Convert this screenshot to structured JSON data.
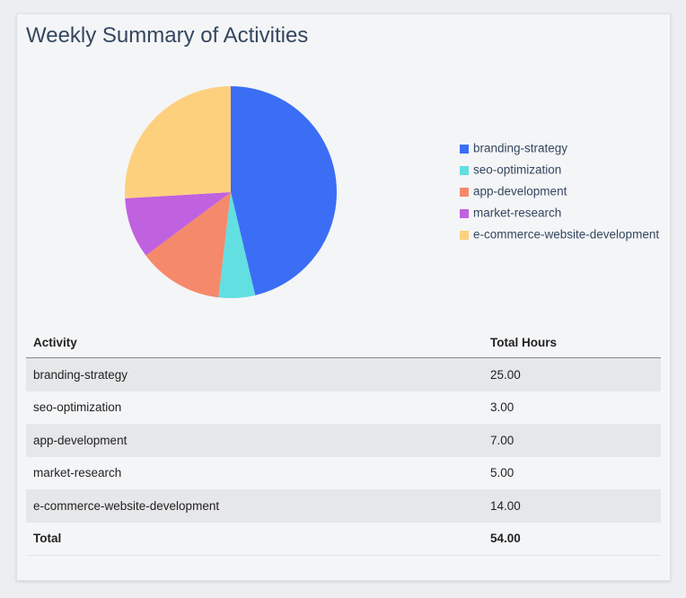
{
  "chart_data": {
    "type": "pie",
    "title": "Weekly Summary of Activities",
    "categories": [
      "branding-strategy",
      "seo-optimization",
      "app-development",
      "market-research",
      "e-commerce-website-development"
    ],
    "values": [
      25,
      3,
      7,
      5,
      14
    ],
    "colors": [
      "#3b6ef5",
      "#62dfe0",
      "#f5896b",
      "#c061e0",
      "#fdd07e"
    ],
    "legend": "right"
  },
  "table": {
    "header": [
      "Activity",
      "Total Hours"
    ],
    "rows": [
      [
        "branding-strategy",
        "25.00"
      ],
      [
        "seo-optimization",
        "3.00"
      ],
      [
        "app-development",
        "7.00"
      ],
      [
        "market-research",
        "5.00"
      ],
      [
        "e-commerce-website-development",
        "14.00"
      ]
    ],
    "footer": [
      "Total",
      "54.00"
    ]
  }
}
